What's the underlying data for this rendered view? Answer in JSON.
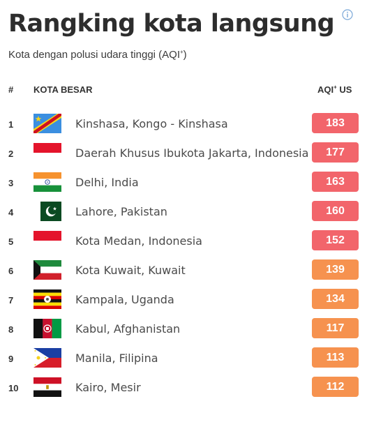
{
  "header": {
    "title": "Rangking kota langsung",
    "subtitle_text": "Kota dengan polusi udara tinggi (AQI",
    "subtitle_sup": "+",
    "subtitle_end": ")",
    "info_icon": "info-circle-icon"
  },
  "columns": {
    "rank": "#",
    "city": "KOTA BESAR",
    "aqi_text": "AQI",
    "aqi_sup": "+",
    "aqi_end": " US"
  },
  "colors": {
    "badge_red": "#f2656b",
    "badge_orange": "#f6924f"
  },
  "rows": [
    {
      "rank": "1",
      "city": "Kinshasa, Kongo - Kinshasa",
      "aqi": "183",
      "flag": "dr-congo-flag-icon",
      "level": "red"
    },
    {
      "rank": "2",
      "city": "Daerah Khusus Ibukota Jakarta, Indonesia",
      "aqi": "177",
      "flag": "indonesia-flag-icon",
      "level": "red"
    },
    {
      "rank": "3",
      "city": "Delhi, India",
      "aqi": "163",
      "flag": "india-flag-icon",
      "level": "red"
    },
    {
      "rank": "4",
      "city": "Lahore, Pakistan",
      "aqi": "160",
      "flag": "pakistan-flag-icon",
      "level": "red"
    },
    {
      "rank": "5",
      "city": "Kota Medan, Indonesia",
      "aqi": "152",
      "flag": "indonesia-flag-icon",
      "level": "red"
    },
    {
      "rank": "6",
      "city": "Kota Kuwait, Kuwait",
      "aqi": "139",
      "flag": "kuwait-flag-icon",
      "level": "orange"
    },
    {
      "rank": "7",
      "city": "Kampala, Uganda",
      "aqi": "134",
      "flag": "uganda-flag-icon",
      "level": "orange"
    },
    {
      "rank": "8",
      "city": "Kabul, Afghanistan",
      "aqi": "117",
      "flag": "afghanistan-flag-icon",
      "level": "orange"
    },
    {
      "rank": "9",
      "city": "Manila, Filipina",
      "aqi": "113",
      "flag": "philippines-flag-icon",
      "level": "orange"
    },
    {
      "rank": "10",
      "city": "Kairo, Mesir",
      "aqi": "112",
      "flag": "egypt-flag-icon",
      "level": "orange"
    }
  ]
}
